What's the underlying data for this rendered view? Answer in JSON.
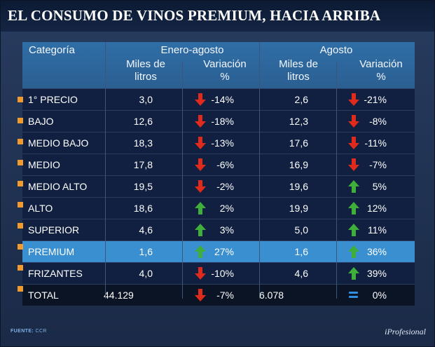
{
  "title": "EL CONSUMO DE VINOS PREMIUM, HACIA ARRIBA",
  "colors": {
    "header": "#2f6ea6",
    "highlight": "#3a8fd0",
    "bullet": "#f29a2e",
    "down": "#e02a1c",
    "up": "#3fae3a",
    "equal": "#2f8fe0"
  },
  "headers": {
    "categoria": "Categoría",
    "enero_agosto": "Enero-agosto",
    "agosto": "Agosto",
    "miles_l1": "Miles de",
    "miles_l2": "litros",
    "var_l1": "Variación",
    "var_l2": "%"
  },
  "chart_data": {
    "type": "table",
    "title": "EL CONSUMO DE VINOS PREMIUM, HACIA ARRIBA",
    "columns": [
      "Categoría",
      "Enero-agosto Miles de litros",
      "Enero-agosto Variación %",
      "Agosto Miles de litros",
      "Agosto Variación %"
    ],
    "rows": [
      {
        "cat": "1° PRECIO",
        "ea_miles": "3,0",
        "ea_var": "-14%",
        "ea_dir": "down",
        "ag_miles": "2,6",
        "ag_var": "-21%",
        "ag_dir": "down"
      },
      {
        "cat": "BAJO",
        "ea_miles": "12,6",
        "ea_var": "-18%",
        "ea_dir": "down",
        "ag_miles": "12,3",
        "ag_var": "-8%",
        "ag_dir": "down"
      },
      {
        "cat": "MEDIO BAJO",
        "ea_miles": "18,3",
        "ea_var": "-13%",
        "ea_dir": "down",
        "ag_miles": "17,6",
        "ag_var": "-11%",
        "ag_dir": "down"
      },
      {
        "cat": "MEDIO",
        "ea_miles": "17,8",
        "ea_var": "-6%",
        "ea_dir": "down",
        "ag_miles": "16,9",
        "ag_var": "-7%",
        "ag_dir": "down"
      },
      {
        "cat": "MEDIO ALTO",
        "ea_miles": "19,5",
        "ea_var": "-2%",
        "ea_dir": "down",
        "ag_miles": "19,6",
        "ag_var": "5%",
        "ag_dir": "up"
      },
      {
        "cat": "ALTO",
        "ea_miles": "18,6",
        "ea_var": "2%",
        "ea_dir": "up",
        "ag_miles": "19,9",
        "ag_var": "12%",
        "ag_dir": "up"
      },
      {
        "cat": "SUPERIOR",
        "ea_miles": "4,6",
        "ea_var": "3%",
        "ea_dir": "up",
        "ag_miles": "5,0",
        "ag_var": "11%",
        "ag_dir": "up"
      },
      {
        "cat": "PREMIUM",
        "ea_miles": "1,6",
        "ea_var": "27%",
        "ea_dir": "up",
        "ag_miles": "1,6",
        "ag_var": "36%",
        "ag_dir": "up",
        "highlight": true
      },
      {
        "cat": "FRIZANTES",
        "ea_miles": "4,0",
        "ea_var": "-10%",
        "ea_dir": "down",
        "ag_miles": "4,6",
        "ag_var": "39%",
        "ag_dir": "up"
      },
      {
        "cat": "TOTAL",
        "ea_miles": "44.129",
        "ea_var": "-7%",
        "ea_dir": "down",
        "ag_miles": "6.078",
        "ag_var": "0%",
        "ag_dir": "equal",
        "total": true
      }
    ]
  },
  "footer": {
    "label": "FUENTE:",
    "source": "CCR"
  },
  "logo": "iProfesional"
}
